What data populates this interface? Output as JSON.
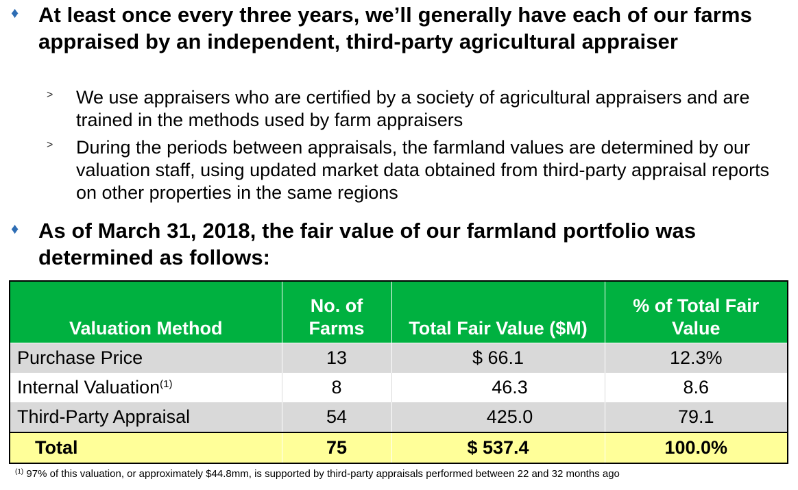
{
  "bullets": [
    {
      "text": "At least once every three years, we’ll generally have each of our farms appraised by an independent, third-party agricultural appraiser",
      "subs": [
        "We use appraisers who are certified by a society of agricultural appraisers and are trained in the methods used by farm appraisers",
        "During the periods between appraisals, the farmland values are determined by our valuation staff, using updated market data obtained from third-party appraisal reports on other properties in the same regions"
      ]
    },
    {
      "text": "As of March 31, 2018, the fair value of our farmland portfolio was determined as follows:"
    }
  ],
  "table": {
    "headers": [
      "Valuation Method",
      "No. of Farms",
      "Total Fair Value ($M)",
      "% of Total Fair Value"
    ],
    "rows": [
      {
        "method": "Purchase Price",
        "farms": "13",
        "value": "$ 66.1",
        "pct": "12.3%"
      },
      {
        "method": "Internal Valuation",
        "footnote_marker": "(1)",
        "farms": "8",
        "value": "46.3",
        "pct": "8.6"
      },
      {
        "method": "Third-Party Appraisal",
        "farms": "54",
        "value": "425.0",
        "pct": "79.1"
      }
    ],
    "total": {
      "method": "Total",
      "farms": "75",
      "value": "$ 537.4",
      "pct": "100.0%"
    }
  },
  "footnote": {
    "marker": "(1)",
    "text": "97% of this valuation, or approximately $44.8mm, is supported by third-party appraisals performed between 22 and 32 months ago"
  },
  "colors": {
    "bullet": "#2e6db4",
    "header_bg": "#00b140",
    "row_gray": "#d9d9d9",
    "total_bg": "#ffff99"
  },
  "icons": {
    "bullet": "diamond-icon",
    "sub_bullet": "chevron-right-icon"
  }
}
